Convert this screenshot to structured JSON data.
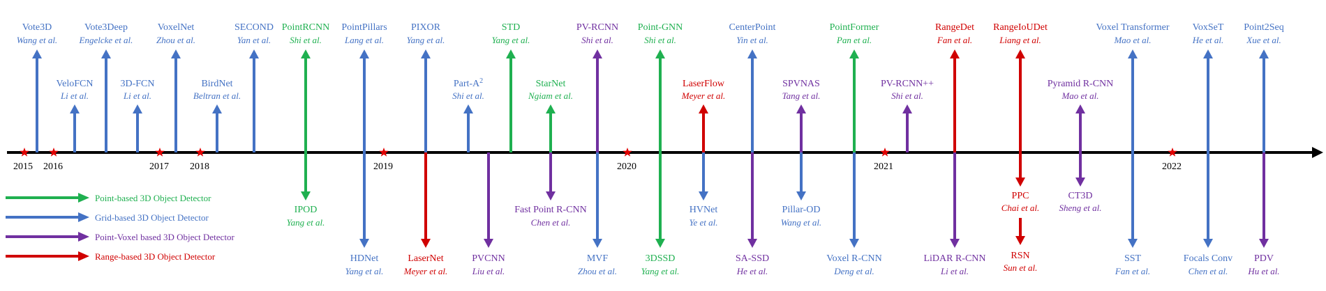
{
  "colors": {
    "point": "#1fb050",
    "grid": "#4472c4",
    "pointvoxel": "#7030a0",
    "range": "#d00000",
    "axis": "#000000",
    "star": "#e00000"
  },
  "legend": [
    {
      "type": "point",
      "label": "Point-based 3D Object Detector"
    },
    {
      "type": "grid",
      "label": "Grid-based 3D Object Detector"
    },
    {
      "type": "pointvoxel",
      "label": "Point-Voxel based 3D Object Detector"
    },
    {
      "type": "range",
      "label": "Range-based 3D Object Detector"
    }
  ],
  "years": [
    "2015",
    "2016",
    "2017",
    "2018",
    "2019",
    "2020",
    "2021",
    "2022"
  ],
  "methods": [
    {
      "id": "vote3d",
      "name": "Vote3D",
      "authors": "Wang et al.",
      "type": "grid",
      "side": "up",
      "level": "high"
    },
    {
      "id": "velofcn",
      "name": "VeloFCN",
      "authors": "Li et al.",
      "type": "grid",
      "side": "up",
      "level": "low"
    },
    {
      "id": "vote3deep",
      "name": "Vote3Deep",
      "authors": "Engelcke et al.",
      "type": "grid",
      "side": "up",
      "level": "high"
    },
    {
      "id": "3dfcn",
      "name": "3D-FCN",
      "authors": "Li et al.",
      "type": "grid",
      "side": "up",
      "level": "low"
    },
    {
      "id": "voxelnet",
      "name": "VoxelNet",
      "authors": "Zhou et al.",
      "type": "grid",
      "side": "up",
      "level": "high"
    },
    {
      "id": "birdnet",
      "name": "BirdNet",
      "authors": "Beltran et al.",
      "type": "grid",
      "side": "up",
      "level": "low"
    },
    {
      "id": "second",
      "name": "SECOND",
      "authors": "Yan et al.",
      "type": "grid",
      "side": "up",
      "level": "high"
    },
    {
      "id": "pointrcnn",
      "name": "PointRCNN",
      "authors": "Shi et al.",
      "type": "point",
      "side": "up",
      "level": "high"
    },
    {
      "id": "ipod",
      "name": "IPOD",
      "authors": "Yang et al.",
      "type": "point",
      "side": "down",
      "level": "low"
    },
    {
      "id": "pointpillars",
      "name": "PointPillars",
      "authors": "Lang et al.",
      "type": "grid",
      "side": "up",
      "level": "high"
    },
    {
      "id": "hdnet",
      "name": "HDNet",
      "authors": "Yang et al.",
      "type": "grid",
      "side": "down",
      "level": "high"
    },
    {
      "id": "pixor",
      "name": "PIXOR",
      "authors": "Yang et al.",
      "type": "grid",
      "side": "up",
      "level": "high"
    },
    {
      "id": "lasernet",
      "name": "LaserNet",
      "authors": "Meyer et al.",
      "type": "range",
      "side": "down",
      "level": "high"
    },
    {
      "id": "parta2",
      "name": "Part-A",
      "sup": "2",
      "authors": "Shi et al.",
      "type": "grid",
      "side": "up",
      "level": "low"
    },
    {
      "id": "pvcnn",
      "name": "PVCNN",
      "authors": "Liu et al.",
      "type": "pointvoxel",
      "side": "down",
      "level": "high"
    },
    {
      "id": "std",
      "name": "STD",
      "authors": "Yang et al.",
      "type": "point",
      "side": "up",
      "level": "high"
    },
    {
      "id": "starnet",
      "name": "StarNet",
      "authors": "Ngiam et al.",
      "type": "point",
      "side": "up",
      "level": "low"
    },
    {
      "id": "fastpointrcnn",
      "name": "Fast Point R-CNN",
      "authors": "Chen et al.",
      "type": "pointvoxel",
      "side": "down",
      "level": "low"
    },
    {
      "id": "pvrcnn",
      "name": "PV-RCNN",
      "authors": "Shi et al.",
      "type": "pointvoxel",
      "side": "up",
      "level": "high"
    },
    {
      "id": "mvf",
      "name": "MVF",
      "authors": "Zhou et al.",
      "type": "grid",
      "side": "down",
      "level": "high"
    },
    {
      "id": "pointgnn",
      "name": "Point-GNN",
      "authors": "Shi et al.",
      "type": "point",
      "side": "up",
      "level": "high"
    },
    {
      "id": "3dssd",
      "name": "3DSSD",
      "authors": "Yang et al.",
      "type": "point",
      "side": "down",
      "level": "high"
    },
    {
      "id": "laserflow",
      "name": "LaserFlow",
      "authors": "Meyer et al.",
      "type": "range",
      "side": "up",
      "level": "low"
    },
    {
      "id": "hvnet",
      "name": "HVNet",
      "authors": "Ye et al.",
      "type": "grid",
      "side": "down",
      "level": "low"
    },
    {
      "id": "centerpoint",
      "name": "CenterPoint",
      "authors": "Yin et al.",
      "type": "grid",
      "side": "up",
      "level": "high"
    },
    {
      "id": "sassd",
      "name": "SA-SSD",
      "authors": "He et al.",
      "type": "pointvoxel",
      "side": "down",
      "level": "high"
    },
    {
      "id": "spvnas",
      "name": "SPVNAS",
      "authors": "Tang et al.",
      "type": "pointvoxel",
      "side": "up",
      "level": "low"
    },
    {
      "id": "pillarod",
      "name": "Pillar-OD",
      "authors": "Wang et al.",
      "type": "grid",
      "side": "down",
      "level": "low"
    },
    {
      "id": "pointformer",
      "name": "PointFormer",
      "authors": "Pan et al.",
      "type": "point",
      "side": "up",
      "level": "high"
    },
    {
      "id": "voxelrcnn",
      "name": "Voxel R-CNN",
      "authors": "Deng et al.",
      "type": "grid",
      "side": "down",
      "level": "high"
    },
    {
      "id": "pvrcnnpp",
      "name": "PV-RCNN++",
      "authors": "Shi et al.",
      "type": "pointvoxel",
      "side": "up",
      "level": "low"
    },
    {
      "id": "rangedet",
      "name": "RangeDet",
      "authors": "Fan et al.",
      "type": "range",
      "side": "up",
      "level": "high"
    },
    {
      "id": "lidarrcnn",
      "name": "LiDAR R-CNN",
      "authors": "Li et al.",
      "type": "pointvoxel",
      "side": "down",
      "level": "high"
    },
    {
      "id": "rangeioudet",
      "name": "RangeIoUDet",
      "authors": "Liang et al.",
      "type": "range",
      "side": "up",
      "level": "high"
    },
    {
      "id": "ppc",
      "name": "PPC",
      "authors": "Chai et al.",
      "type": "range",
      "side": "down",
      "level": "low"
    },
    {
      "id": "rsn",
      "name": "RSN",
      "authors": "Sun et al.",
      "type": "range",
      "side": "down",
      "level": "high"
    },
    {
      "id": "pyramidrcnn",
      "name": "Pyramid R-CNN",
      "authors": "Mao et al.",
      "type": "pointvoxel",
      "side": "up",
      "level": "low"
    },
    {
      "id": "ct3d",
      "name": "CT3D",
      "authors": "Sheng et al.",
      "type": "pointvoxel",
      "side": "down",
      "level": "low"
    },
    {
      "id": "voxeltransformer",
      "name": "Voxel Transformer",
      "authors": "Mao et al.",
      "type": "grid",
      "side": "up",
      "level": "high"
    },
    {
      "id": "sst",
      "name": "SST",
      "authors": "Fan et al.",
      "type": "grid",
      "side": "down",
      "level": "high"
    },
    {
      "id": "voxset",
      "name": "VoxSeT",
      "authors": "He et al.",
      "type": "grid",
      "side": "up",
      "level": "high"
    },
    {
      "id": "focalsconv",
      "name": "Focals Conv",
      "authors": "Chen et al.",
      "type": "grid",
      "side": "down",
      "level": "high"
    },
    {
      "id": "point2seq",
      "name": "Point2Seq",
      "authors": "Xue et al.",
      "type": "grid",
      "side": "up",
      "level": "high"
    },
    {
      "id": "pdv",
      "name": "PDV",
      "authors": "Hu et al.",
      "type": "pointvoxel",
      "side": "down",
      "level": "high"
    }
  ]
}
